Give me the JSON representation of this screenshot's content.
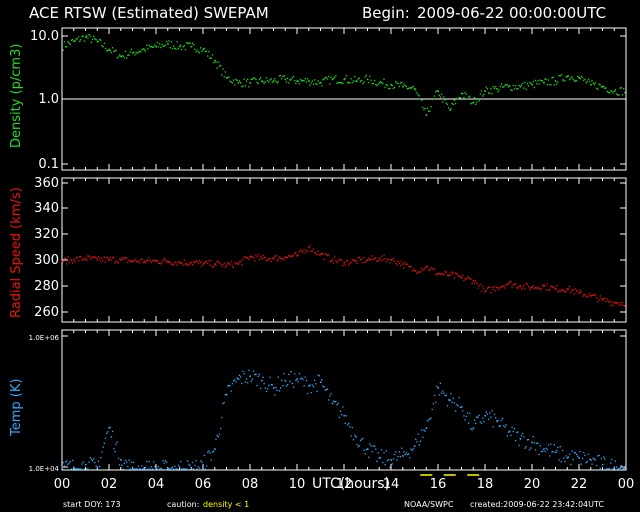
{
  "header": {
    "title": "ACE RTSW (Estimated) SWEPAM",
    "begin_label": "Begin:",
    "begin_value": "2009-06-22 00:00:00UTC"
  },
  "x_axis": {
    "title": "UTC(hours)",
    "ticks": [
      "00",
      "02",
      "04",
      "06",
      "08",
      "10",
      "12",
      "14",
      "16",
      "18",
      "20",
      "22",
      "00"
    ],
    "range": [
      0,
      24
    ]
  },
  "footer": {
    "start_doy": "start DOY: 173",
    "caution_label": "caution:",
    "caution_value": "density < 1",
    "source": "NOAA/SWPC",
    "created": "created:2009-06-22 23:42:04UTC"
  },
  "colors": {
    "density": "#22dd22",
    "speed": "#ee1111",
    "temp": "#33aaff",
    "caution": "#ffff00",
    "axes": "#ffffff"
  },
  "chart_data": [
    {
      "type": "scatter",
      "ylabel_parts": [
        "Density",
        " (p/cm3)"
      ],
      "yscale": "log",
      "ylim": [
        0.1,
        10.0
      ],
      "yticks": [
        "10.0",
        "1.0",
        "0.1"
      ],
      "reference_line": 1.0,
      "x": [
        0,
        0.5,
        1,
        1.5,
        2,
        2.5,
        3,
        3.5,
        4,
        4.5,
        5,
        5.5,
        6,
        6.5,
        7,
        7.5,
        8,
        8.5,
        9,
        9.5,
        10,
        10.5,
        11,
        11.5,
        12,
        12.5,
        13,
        13.5,
        14,
        14.5,
        15,
        15.5,
        16,
        16.5,
        17,
        17.5,
        18,
        18.5,
        19,
        19.5,
        20,
        20.5,
        21,
        21.5,
        22,
        22.5,
        23,
        23.5
      ],
      "y": [
        5.5,
        6.5,
        7.5,
        6.5,
        5.0,
        4.0,
        4.5,
        5.0,
        5.5,
        6.0,
        5.5,
        5.5,
        5.0,
        3.5,
        2.0,
        1.7,
        1.7,
        1.8,
        1.8,
        1.9,
        1.8,
        1.8,
        1.7,
        1.9,
        1.9,
        1.8,
        1.9,
        1.7,
        1.6,
        1.5,
        1.4,
        0.6,
        1.3,
        0.7,
        1.2,
        0.9,
        1.3,
        1.4,
        1.5,
        1.5,
        1.6,
        1.7,
        1.8,
        2.1,
        2.0,
        1.6,
        1.5,
        1.3
      ]
    },
    {
      "type": "scatter",
      "ylabel_parts": [
        "Radial",
        " Speed",
        " (km/s)"
      ],
      "ylim": [
        258,
        362
      ],
      "yticks": [
        "360",
        "340",
        "320",
        "300",
        "280",
        "260"
      ],
      "x": [
        0,
        0.5,
        1,
        1.5,
        2,
        2.5,
        3,
        3.5,
        4,
        4.5,
        5,
        5.5,
        6,
        6.5,
        7,
        7.5,
        8,
        8.5,
        9,
        9.5,
        10,
        10.5,
        11,
        11.5,
        12,
        12.5,
        13,
        13.5,
        14,
        14.5,
        15,
        15.5,
        16,
        16.5,
        17,
        17.5,
        18,
        18.5,
        19,
        19.5,
        20,
        20.5,
        21,
        21.5,
        22,
        22.5,
        23,
        23.5
      ],
      "y": [
        302,
        303,
        304,
        303,
        303,
        303,
        302,
        302,
        302,
        302,
        301,
        301,
        300,
        300,
        299,
        300,
        305,
        304,
        304,
        305,
        306,
        312,
        307,
        303,
        301,
        302,
        303,
        304,
        303,
        300,
        295,
        298,
        293,
        292,
        290,
        288,
        280,
        283,
        286,
        284,
        283,
        284,
        282,
        282,
        279,
        277,
        274,
        272
      ]
    },
    {
      "type": "scatter",
      "ylabel_parts": [
        "Temp",
        " (K)"
      ],
      "yscale": "log",
      "ylim": [
        10000,
        1000000
      ],
      "yticks": [
        "1.0E+06",
        "1.0E+04"
      ],
      "x": [
        0,
        0.5,
        1,
        1.5,
        2,
        2.5,
        3,
        3.5,
        4,
        4.5,
        5,
        5.5,
        6,
        6.5,
        7,
        7.5,
        8,
        8.5,
        9,
        9.5,
        10,
        10.5,
        11,
        11.5,
        12,
        12.5,
        13,
        13.5,
        14,
        14.5,
        15,
        15.5,
        16,
        16.5,
        17,
        17.5,
        18,
        18.5,
        19,
        19.5,
        20,
        20.5,
        21,
        21.5,
        22,
        22.5,
        23,
        23.5
      ],
      "y": [
        11000,
        11000,
        12000,
        11000,
        40000,
        14000,
        10500,
        10500,
        10500,
        10500,
        11000,
        10500,
        12000,
        20000,
        120000,
        200000,
        220000,
        190000,
        150000,
        190000,
        200000,
        160000,
        180000,
        90000,
        60000,
        30000,
        20000,
        15000,
        14000,
        16000,
        22000,
        40000,
        150000,
        100000,
        80000,
        40000,
        60000,
        50000,
        35000,
        28000,
        25000,
        20000,
        18000,
        15000,
        15000,
        14000,
        12000,
        11000
      ]
    }
  ]
}
